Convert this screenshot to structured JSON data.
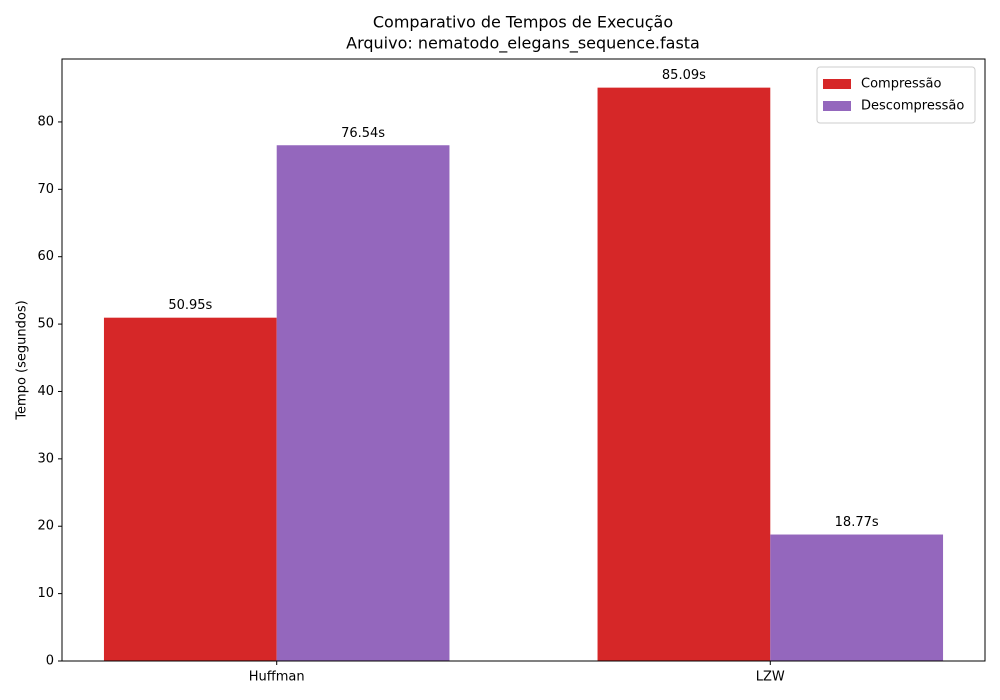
{
  "chart_data": {
    "type": "bar",
    "title": "Comparativo de Tempos de Execução",
    "subtitle": "Arquivo: nematodo_elegans_sequence.fasta",
    "y_label": "Tempo (segundos)",
    "categories": [
      "Huffman",
      "LZW"
    ],
    "series": [
      {
        "name": "Compressão",
        "color": "#d62728",
        "values": [
          50.95,
          85.09
        ],
        "value_labels": [
          "50.95s",
          "85.09s"
        ]
      },
      {
        "name": "Descompressão",
        "color": "#9467bd",
        "values": [
          76.54,
          18.77
        ],
        "value_labels": [
          "76.54s",
          "18.77s"
        ]
      }
    ],
    "ylim": [
      0,
      89.34
    ],
    "yticks": [
      0,
      10,
      20,
      30,
      40,
      50,
      60,
      70,
      80
    ],
    "legend": "upper right"
  }
}
